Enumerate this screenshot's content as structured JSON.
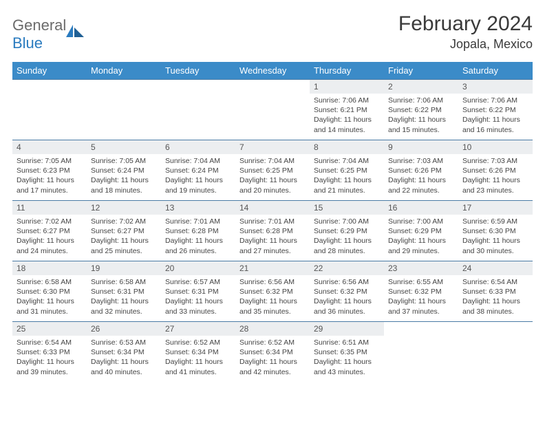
{
  "logo": {
    "text1": "General",
    "text2": "Blue"
  },
  "title": "February 2024",
  "location": "Jopala, Mexico",
  "weekdays": [
    "Sunday",
    "Monday",
    "Tuesday",
    "Wednesday",
    "Thursday",
    "Friday",
    "Saturday"
  ],
  "colors": {
    "header_bg": "#3b8bc8",
    "header_fg": "#ffffff",
    "daynum_bg": "#eceef0",
    "border": "#4a7ba5",
    "logo_gray": "#6b6b6b",
    "logo_blue": "#2a7bbf"
  },
  "weeks": [
    [
      null,
      null,
      null,
      null,
      {
        "n": "1",
        "sr": "7:06 AM",
        "ss": "6:21 PM",
        "dl": "11 hours and 14 minutes."
      },
      {
        "n": "2",
        "sr": "7:06 AM",
        "ss": "6:22 PM",
        "dl": "11 hours and 15 minutes."
      },
      {
        "n": "3",
        "sr": "7:06 AM",
        "ss": "6:22 PM",
        "dl": "11 hours and 16 minutes."
      }
    ],
    [
      {
        "n": "4",
        "sr": "7:05 AM",
        "ss": "6:23 PM",
        "dl": "11 hours and 17 minutes."
      },
      {
        "n": "5",
        "sr": "7:05 AM",
        "ss": "6:24 PM",
        "dl": "11 hours and 18 minutes."
      },
      {
        "n": "6",
        "sr": "7:04 AM",
        "ss": "6:24 PM",
        "dl": "11 hours and 19 minutes."
      },
      {
        "n": "7",
        "sr": "7:04 AM",
        "ss": "6:25 PM",
        "dl": "11 hours and 20 minutes."
      },
      {
        "n": "8",
        "sr": "7:04 AM",
        "ss": "6:25 PM",
        "dl": "11 hours and 21 minutes."
      },
      {
        "n": "9",
        "sr": "7:03 AM",
        "ss": "6:26 PM",
        "dl": "11 hours and 22 minutes."
      },
      {
        "n": "10",
        "sr": "7:03 AM",
        "ss": "6:26 PM",
        "dl": "11 hours and 23 minutes."
      }
    ],
    [
      {
        "n": "11",
        "sr": "7:02 AM",
        "ss": "6:27 PM",
        "dl": "11 hours and 24 minutes."
      },
      {
        "n": "12",
        "sr": "7:02 AM",
        "ss": "6:27 PM",
        "dl": "11 hours and 25 minutes."
      },
      {
        "n": "13",
        "sr": "7:01 AM",
        "ss": "6:28 PM",
        "dl": "11 hours and 26 minutes."
      },
      {
        "n": "14",
        "sr": "7:01 AM",
        "ss": "6:28 PM",
        "dl": "11 hours and 27 minutes."
      },
      {
        "n": "15",
        "sr": "7:00 AM",
        "ss": "6:29 PM",
        "dl": "11 hours and 28 minutes."
      },
      {
        "n": "16",
        "sr": "7:00 AM",
        "ss": "6:29 PM",
        "dl": "11 hours and 29 minutes."
      },
      {
        "n": "17",
        "sr": "6:59 AM",
        "ss": "6:30 PM",
        "dl": "11 hours and 30 minutes."
      }
    ],
    [
      {
        "n": "18",
        "sr": "6:58 AM",
        "ss": "6:30 PM",
        "dl": "11 hours and 31 minutes."
      },
      {
        "n": "19",
        "sr": "6:58 AM",
        "ss": "6:31 PM",
        "dl": "11 hours and 32 minutes."
      },
      {
        "n": "20",
        "sr": "6:57 AM",
        "ss": "6:31 PM",
        "dl": "11 hours and 33 minutes."
      },
      {
        "n": "21",
        "sr": "6:56 AM",
        "ss": "6:32 PM",
        "dl": "11 hours and 35 minutes."
      },
      {
        "n": "22",
        "sr": "6:56 AM",
        "ss": "6:32 PM",
        "dl": "11 hours and 36 minutes."
      },
      {
        "n": "23",
        "sr": "6:55 AM",
        "ss": "6:32 PM",
        "dl": "11 hours and 37 minutes."
      },
      {
        "n": "24",
        "sr": "6:54 AM",
        "ss": "6:33 PM",
        "dl": "11 hours and 38 minutes."
      }
    ],
    [
      {
        "n": "25",
        "sr": "6:54 AM",
        "ss": "6:33 PM",
        "dl": "11 hours and 39 minutes."
      },
      {
        "n": "26",
        "sr": "6:53 AM",
        "ss": "6:34 PM",
        "dl": "11 hours and 40 minutes."
      },
      {
        "n": "27",
        "sr": "6:52 AM",
        "ss": "6:34 PM",
        "dl": "11 hours and 41 minutes."
      },
      {
        "n": "28",
        "sr": "6:52 AM",
        "ss": "6:34 PM",
        "dl": "11 hours and 42 minutes."
      },
      {
        "n": "29",
        "sr": "6:51 AM",
        "ss": "6:35 PM",
        "dl": "11 hours and 43 minutes."
      },
      null,
      null
    ]
  ],
  "labels": {
    "sunrise": "Sunrise:",
    "sunset": "Sunset:",
    "daylight": "Daylight:"
  }
}
